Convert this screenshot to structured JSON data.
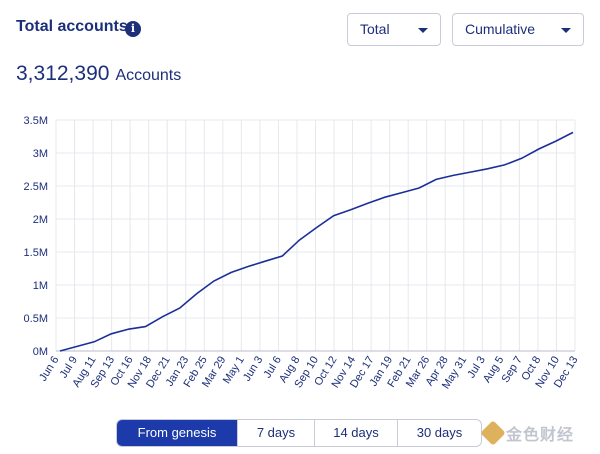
{
  "header": {
    "title": "Total accounts",
    "info_icon": "i"
  },
  "controls": {
    "aggregation": {
      "selected": "Total",
      "icon": "chevron-down-icon"
    },
    "mode": {
      "selected": "Cumulative",
      "icon": "chevron-down-icon"
    }
  },
  "summary": {
    "value": "3,312,390",
    "unit": "Accounts"
  },
  "colors": {
    "line": "#1c2f99",
    "text": "#1c2f7a",
    "accent": "#1c3aa9",
    "grid": "#e6e8ee"
  },
  "range": {
    "selected": "From genesis",
    "options": [
      "From genesis",
      "7 days",
      "14 days",
      "30 days"
    ]
  },
  "watermark": {
    "text": "金色财经"
  },
  "chart_data": {
    "type": "line",
    "title": "",
    "xlabel": "",
    "ylabel": "",
    "ylim": [
      0,
      3500000
    ],
    "grid": true,
    "y_ticks": [
      "0M",
      "0.5M",
      "1M",
      "1.5M",
      "2M",
      "2.5M",
      "3M",
      "3.5M"
    ],
    "y_tick_values": [
      0,
      500000,
      1000000,
      1500000,
      2000000,
      2500000,
      3000000,
      3500000
    ],
    "x_ticks": [
      "Jun 6",
      "Jul 9",
      "Aug 11",
      "Sep 13",
      "Oct 16",
      "Nov 18",
      "Dec 21",
      "Jan 23",
      "Feb 25",
      "Mar 29",
      "May 1",
      "Jun 3",
      "Jul 6",
      "Aug 8",
      "Sep 10",
      "Oct 12",
      "Nov 14",
      "Dec 17",
      "Jan 19",
      "Feb 21",
      "Mar 26",
      "Apr 28",
      "May 31",
      "Jul 3",
      "Aug 5",
      "Sep 7",
      "Oct 8",
      "Nov 10",
      "Dec 13"
    ],
    "series": [
      {
        "values": [
          0,
          70000,
          140000,
          260000,
          330000,
          370000,
          520000,
          650000,
          870000,
          1060000,
          1190000,
          1280000,
          1360000,
          1440000,
          1680000,
          1870000,
          2050000,
          2140000,
          2240000,
          2330000,
          2400000,
          2470000,
          2600000,
          2660000,
          2710000,
          2760000,
          2820000,
          2920000,
          3060000,
          3180000,
          3312390
        ]
      }
    ]
  }
}
